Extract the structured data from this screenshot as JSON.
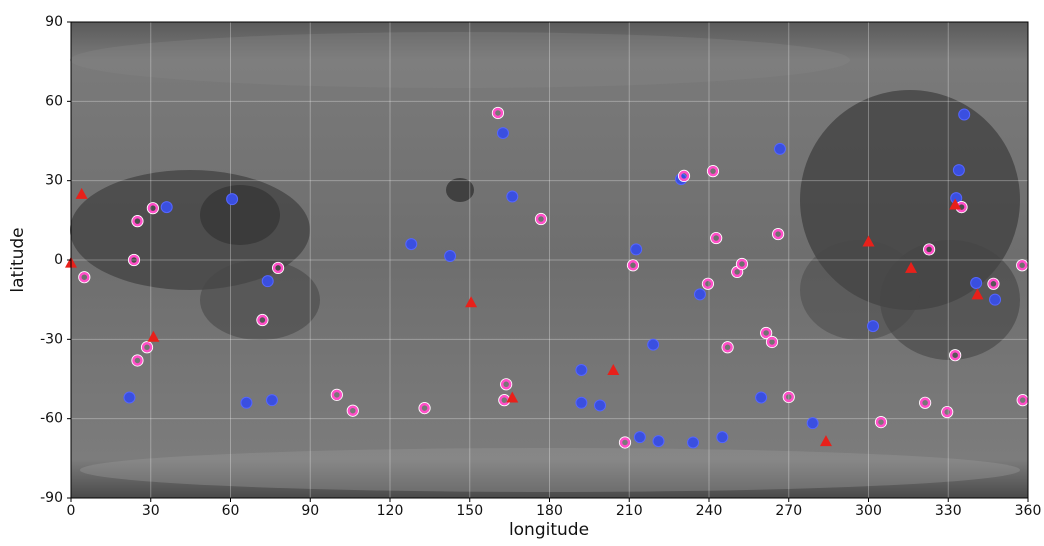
{
  "chart_data": {
    "type": "scatter",
    "xlabel": "longitude",
    "ylabel": "latitude",
    "xlim": [
      0,
      360
    ],
    "ylim": [
      -90,
      90
    ],
    "xticks": [
      0,
      30,
      60,
      90,
      120,
      150,
      180,
      210,
      240,
      270,
      300,
      330,
      360
    ],
    "yticks": [
      -90,
      -60,
      -30,
      0,
      30,
      60,
      90
    ],
    "grid": true,
    "series": [
      {
        "color": "#3a4fe0",
        "marker": "circle",
        "x": [
          22,
          36,
          60.6,
          66,
          75.6,
          74,
          128,
          142.6,
          162.5,
          166,
          192,
          192,
          199,
          212.6,
          214,
          219,
          221,
          234,
          229.5,
          236.6,
          245,
          259.6,
          266.7,
          279,
          301.7,
          336,
          334,
          333,
          340.5,
          347.6
        ],
        "y": [
          -52,
          20,
          23,
          -54,
          -53,
          -8,
          6,
          1.5,
          48,
          24,
          -41.6,
          -54,
          -55,
          4,
          -67,
          -32,
          -68.5,
          -69,
          30.6,
          -13,
          -67,
          -52,
          42,
          -61.7,
          -25,
          55,
          34,
          23.4,
          -8.7,
          -15
        ]
      },
      {
        "color": "#ff4fc8",
        "marker": "ring",
        "x": [
          5,
          30.8,
          25,
          23.7,
          28.6,
          25,
          77.9,
          72,
          100,
          106,
          133,
          160.6,
          176.8,
          163.7,
          163,
          211.4,
          208.4,
          230.6,
          241.5,
          242.7,
          239.6,
          250.6,
          252.4,
          247,
          261.5,
          263.7,
          266,
          270,
          304.7,
          321.3,
          322.8,
          329.6,
          332.6,
          335,
          347,
          357.8,
          358
        ],
        "y": [
          -6.5,
          19.6,
          14.7,
          0,
          -33,
          -38,
          -3,
          -22.7,
          -51,
          -57,
          -56,
          55.6,
          15.5,
          -47,
          -53,
          -2,
          -69,
          31.8,
          33.6,
          8.3,
          -9,
          -4.5,
          -1.5,
          -33,
          -27.6,
          -31,
          9.8,
          -51.8,
          -61.3,
          -54,
          4,
          -57.5,
          -36,
          20,
          -9,
          -2,
          -53
        ]
      },
      {
        "color": "#e8201a",
        "marker": "triangle",
        "x": [
          4,
          31,
          150.5,
          166,
          204,
          300,
          316,
          0,
          332.6,
          341,
          284
        ],
        "y": [
          25,
          -29,
          -16,
          -52,
          -41.6,
          7,
          -3,
          -1,
          21,
          -13,
          -68.5
        ]
      }
    ]
  }
}
